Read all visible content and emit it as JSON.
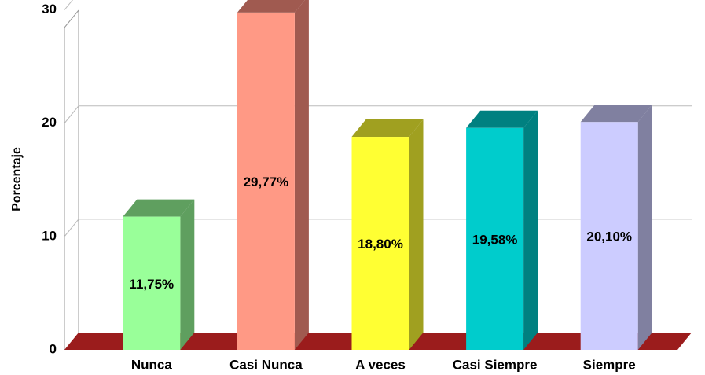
{
  "chart_data": {
    "type": "bar3d",
    "y_axis_label": "Porcentaje",
    "categories": [
      "Nunca",
      "Casi Nunca",
      "A veces",
      "Casi Siempre",
      "Siempre"
    ],
    "values": [
      11.75,
      29.77,
      18.8,
      19.58,
      20.1
    ],
    "value_labels": [
      "11,75%",
      "29,77%",
      "18,80%",
      "19,58%",
      "20,10%"
    ],
    "colors": [
      "#99ff99",
      "#ff9985",
      "#ffff33",
      "#00cccc",
      "#ccccff"
    ],
    "side_colors": [
      "#5f9f5f",
      "#a05a50",
      "#a0a020",
      "#008080",
      "#8080a0"
    ],
    "floor_color": "#9b1c1c",
    "ylim": [
      0,
      31.5
    ],
    "yticks": [
      0,
      10,
      20,
      30
    ],
    "grid": true
  }
}
